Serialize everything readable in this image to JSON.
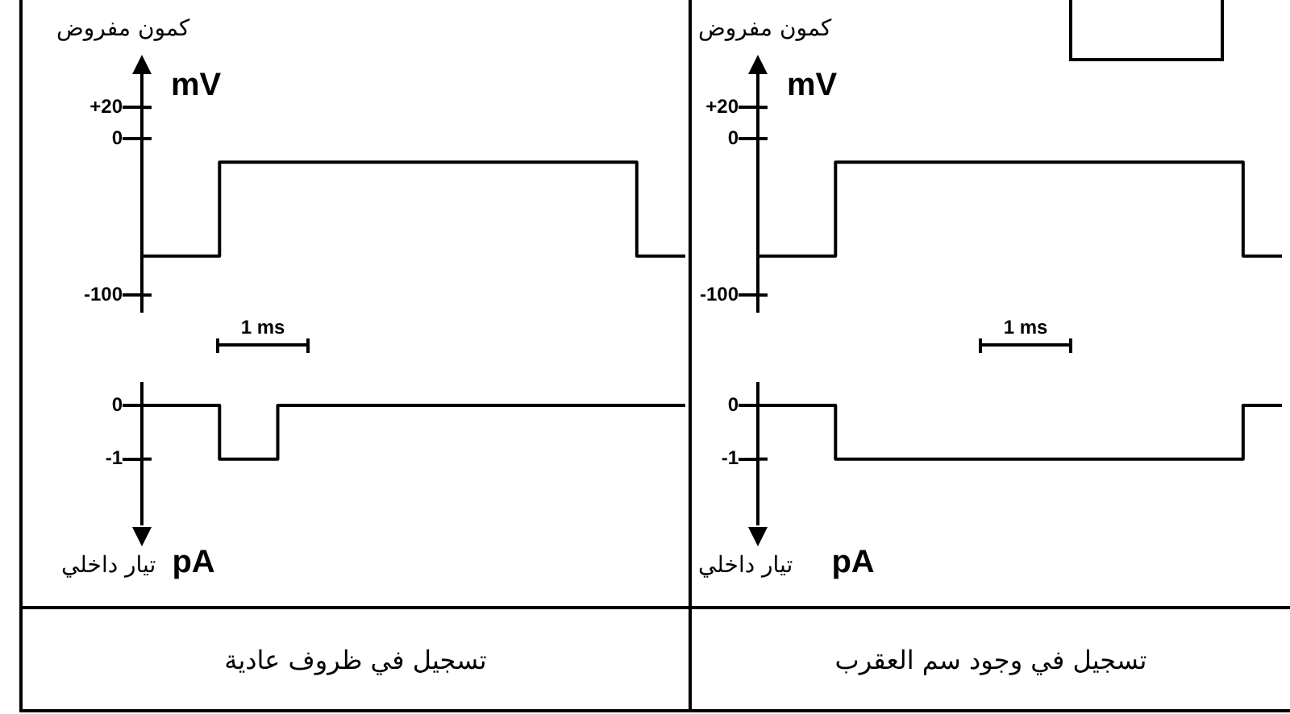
{
  "chart_data": [
    {
      "type": "step",
      "ylabel": "كمون مفروض",
      "annotations": [
        "mV",
        "1 ms"
      ],
      "categories": [
        null,
        null,
        null,
        null,
        null,
        null,
        null,
        null,
        null,
        null,
        null,
        null,
        null,
        null,
        null,
        null,
        null,
        null,
        null,
        null,
        null,
        null,
        null,
        null,
        null,
        null,
        null,
        null,
        null,
        null,
        null,
        null,
        null,
        null,
        null,
        null,
        null,
        null,
        null,
        null,
        null,
        null,
        null,
        null,
        null,
        null,
        null,
        null,
        null,
        null,
        null,
        null,
        null,
        null,
        null,
        null,
        null
      ],
      "series": [
        {
          "color": "#000000",
          "values": [
            -75,
            -75,
            -75,
            -75,
            -75,
            -75,
            -75,
            -75,
            -75,
            -15,
            -15,
            -15,
            -15,
            -15,
            -15,
            -15,
            -15,
            -15,
            -15,
            -15,
            -15,
            -15,
            -15,
            -15,
            -15,
            -15,
            -15,
            -15,
            -15,
            -15,
            -15,
            -15,
            -15,
            -15,
            -15,
            -15,
            -15,
            -15,
            -15,
            -15,
            -15,
            -15,
            -15,
            -15,
            -15,
            -15,
            -15,
            -15,
            -15,
            -15,
            -15,
            -15,
            -75,
            -75,
            -75,
            -75,
            -75
          ]
        }
      ],
      "ylim": [
        -110,
        40
      ],
      "yticks": [
        {
          "value": 20,
          "label": "+20"
        },
        0,
        -100
      ],
      "tick_labels": "y",
      "grid": false,
      "legend": false,
      "marker": "none"
    },
    {
      "type": "step",
      "title": "تسجيل في ظروف عادية",
      "ylabel": "تيار داخلي",
      "annotations": [
        "pA"
      ],
      "categories": [
        null,
        null,
        null,
        null,
        null,
        null,
        null,
        null,
        null,
        null,
        null,
        null,
        null,
        null,
        null,
        null,
        null,
        null,
        null,
        null,
        null,
        null,
        null,
        null,
        null,
        null,
        null,
        null,
        null,
        null,
        null,
        null,
        null,
        null,
        null,
        null,
        null,
        null,
        null,
        null,
        null,
        null,
        null,
        null,
        null,
        null,
        null,
        null,
        null,
        null,
        null,
        null,
        null,
        null,
        null,
        null,
        null
      ],
      "series": [
        {
          "color": "#000000",
          "values": [
            0,
            0,
            0,
            0,
            0,
            0,
            0,
            0,
            0,
            -1,
            -1,
            -1,
            -1,
            -1,
            -1,
            0,
            0,
            0,
            0,
            0,
            0,
            0,
            0,
            0,
            0,
            0,
            0,
            0,
            0,
            0,
            0,
            0,
            0,
            0,
            0,
            0,
            0,
            0,
            0,
            0,
            0,
            0,
            0,
            0,
            0,
            0,
            0,
            0,
            0,
            0,
            0,
            0,
            0,
            0,
            0,
            0,
            0
          ]
        }
      ],
      "ylim": [
        -2.2,
        0.4
      ],
      "yticks": [
        0,
        -1
      ],
      "tick_labels": "y",
      "grid": false,
      "legend": false,
      "marker": "none"
    },
    {
      "type": "step",
      "ylabel": "كمون مفروض",
      "annotations": [
        "mV",
        "1 ms"
      ],
      "categories": [
        null,
        null,
        null,
        null,
        null,
        null,
        null,
        null,
        null,
        null,
        null,
        null,
        null,
        null,
        null,
        null,
        null,
        null,
        null,
        null,
        null,
        null,
        null,
        null,
        null,
        null,
        null,
        null,
        null,
        null,
        null,
        null,
        null,
        null,
        null,
        null,
        null,
        null,
        null,
        null,
        null,
        null,
        null,
        null,
        null,
        null,
        null,
        null,
        null,
        null,
        null,
        null,
        null,
        null,
        null
      ],
      "series": [
        {
          "color": "#000000",
          "values": [
            -75,
            -75,
            -75,
            -75,
            -75,
            -75,
            -75,
            -75,
            -75,
            -15,
            -15,
            -15,
            -15,
            -15,
            -15,
            -15,
            -15,
            -15,
            -15,
            -15,
            -15,
            -15,
            -15,
            -15,
            -15,
            -15,
            -15,
            -15,
            -15,
            -15,
            -15,
            -15,
            -15,
            -15,
            -15,
            -15,
            -15,
            -15,
            -15,
            -15,
            -15,
            -15,
            -15,
            -15,
            -15,
            -15,
            -15,
            -15,
            -15,
            -15,
            -15,
            -75,
            -75,
            -75,
            -75
          ]
        }
      ],
      "ylim": [
        -110,
        40
      ],
      "yticks": [
        {
          "value": 20,
          "label": "+20"
        },
        0,
        -100
      ],
      "tick_labels": "y",
      "grid": false,
      "legend": false,
      "marker": "none"
    },
    {
      "type": "step",
      "title": "تسجيل في وجود سم العقرب",
      "ylabel": "تيار داخلي",
      "annotations": [
        "pA"
      ],
      "categories": [
        null,
        null,
        null,
        null,
        null,
        null,
        null,
        null,
        null,
        null,
        null,
        null,
        null,
        null,
        null,
        null,
        null,
        null,
        null,
        null,
        null,
        null,
        null,
        null,
        null,
        null,
        null,
        null,
        null,
        null,
        null,
        null,
        null,
        null,
        null,
        null,
        null,
        null,
        null,
        null,
        null,
        null,
        null,
        null,
        null,
        null,
        null,
        null,
        null,
        null,
        null,
        null,
        null,
        null,
        null
      ],
      "series": [
        {
          "color": "#000000",
          "values": [
            0,
            0,
            0,
            0,
            0,
            0,
            0,
            0,
            0,
            -1,
            -1,
            -1,
            -1,
            -1,
            -1,
            -1,
            -1,
            -1,
            -1,
            -1,
            -1,
            -1,
            -1,
            -1,
            -1,
            -1,
            -1,
            -1,
            -1,
            -1,
            -1,
            -1,
            -1,
            -1,
            -1,
            -1,
            -1,
            -1,
            -1,
            -1,
            -1,
            -1,
            -1,
            -1,
            -1,
            -1,
            -1,
            -1,
            -1,
            -1,
            -1,
            0,
            0,
            0,
            0
          ]
        }
      ],
      "ylim": [
        -2.2,
        0.4
      ],
      "yticks": [
        0,
        -1
      ],
      "tick_labels": "y",
      "grid": false,
      "legend": false,
      "marker": "none"
    }
  ]
}
